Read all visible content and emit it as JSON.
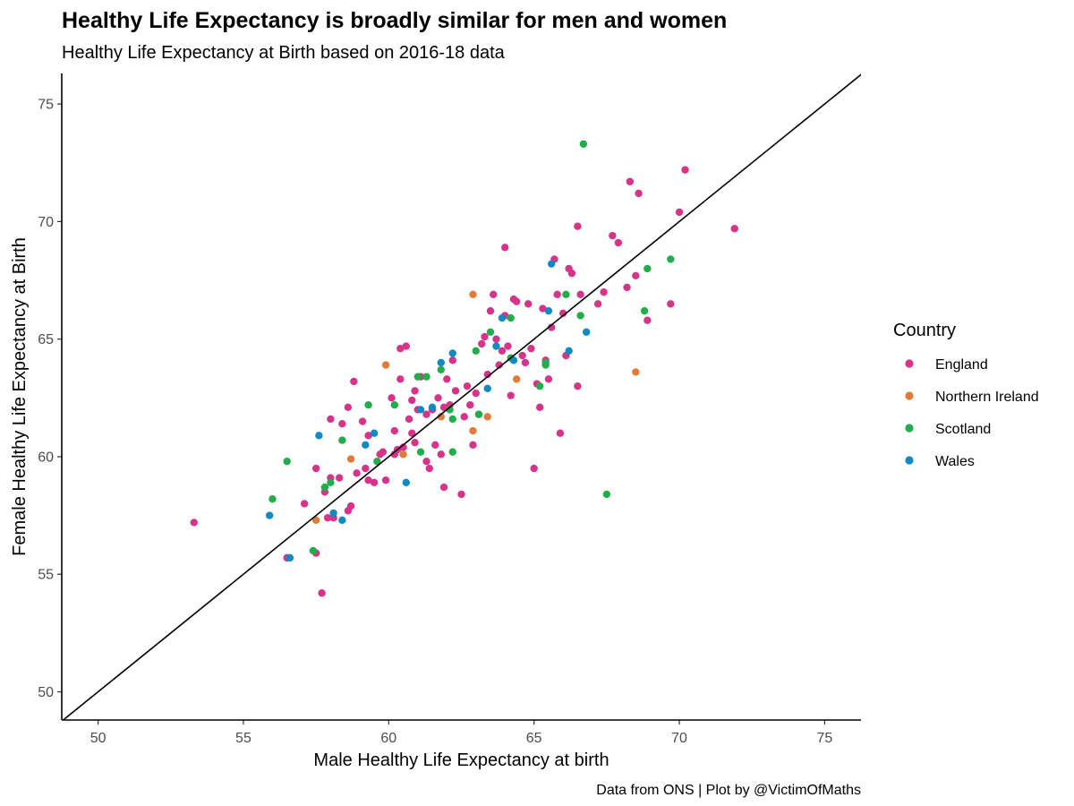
{
  "chart_data": {
    "type": "scatter",
    "title": "Healthy Life Expectancy is broadly similar for men and women",
    "subtitle": "Healthy Life Expectancy at Birth based on 2016-18 data",
    "xlabel": "Male Healthy Life Expectancy at birth",
    "ylabel": "Female Healthy Life Expectancy at Birth",
    "caption": "Data from ONS | Plot by @VictimOfMaths",
    "xlim": [
      48.75,
      76.25
    ],
    "ylim": [
      48.8,
      76.3
    ],
    "xticks": [
      50,
      55,
      60,
      65,
      70,
      75
    ],
    "yticks": [
      50,
      55,
      60,
      65,
      70,
      75
    ],
    "grid": false,
    "reference_line": "y = x",
    "legend": {
      "title": "Country",
      "placement": "right",
      "entries": [
        "England",
        "Northern Ireland",
        "Scotland",
        "Wales"
      ]
    },
    "colors": {
      "England": "#d6338a",
      "Northern Ireland": "#e07b39",
      "Scotland": "#1fae4a",
      "Wales": "#1189c4"
    },
    "series": [
      {
        "name": "England",
        "points": [
          [
            53.3,
            57.2
          ],
          [
            56.5,
            55.7
          ],
          [
            57.1,
            58.0
          ],
          [
            57.5,
            59.5
          ],
          [
            57.5,
            55.9
          ],
          [
            57.8,
            58.5
          ],
          [
            57.7,
            54.2
          ],
          [
            57.9,
            57.4
          ],
          [
            58.0,
            61.6
          ],
          [
            58.0,
            59.1
          ],
          [
            58.1,
            57.4
          ],
          [
            58.3,
            59.1
          ],
          [
            58.4,
            61.4
          ],
          [
            58.6,
            57.7
          ],
          [
            58.7,
            57.9
          ],
          [
            58.6,
            62.1
          ],
          [
            58.8,
            63.2
          ],
          [
            58.9,
            59.3
          ],
          [
            59.1,
            61.5
          ],
          [
            59.2,
            59.5
          ],
          [
            59.3,
            59.0
          ],
          [
            59.3,
            60.9
          ],
          [
            59.5,
            58.9
          ],
          [
            59.7,
            60.1
          ],
          [
            59.8,
            60.2
          ],
          [
            59.9,
            59.0
          ],
          [
            60.1,
            62.5
          ],
          [
            60.2,
            60.1
          ],
          [
            60.3,
            60.3
          ],
          [
            60.2,
            61.1
          ],
          [
            60.4,
            63.3
          ],
          [
            60.4,
            64.6
          ],
          [
            60.5,
            60.4
          ],
          [
            60.6,
            64.7
          ],
          [
            60.7,
            61.6
          ],
          [
            60.8,
            62.4
          ],
          [
            60.8,
            61.0
          ],
          [
            60.9,
            62.8
          ],
          [
            60.9,
            60.6
          ],
          [
            61.0,
            62.0
          ],
          [
            61.1,
            63.4
          ],
          [
            61.3,
            61.8
          ],
          [
            61.3,
            59.8
          ],
          [
            61.4,
            59.5
          ],
          [
            61.5,
            62.0
          ],
          [
            61.6,
            60.5
          ],
          [
            61.7,
            62.5
          ],
          [
            61.8,
            60.1
          ],
          [
            61.9,
            62.1
          ],
          [
            61.9,
            58.7
          ],
          [
            62.0,
            63.3
          ],
          [
            62.1,
            62.2
          ],
          [
            62.2,
            64.1
          ],
          [
            62.3,
            62.8
          ],
          [
            62.5,
            58.4
          ],
          [
            62.6,
            61.7
          ],
          [
            62.7,
            63.0
          ],
          [
            62.8,
            62.2
          ],
          [
            62.9,
            60.5
          ],
          [
            63.0,
            62.7
          ],
          [
            63.1,
            61.8
          ],
          [
            63.2,
            64.8
          ],
          [
            63.3,
            65.1
          ],
          [
            63.4,
            63.5
          ],
          [
            63.5,
            66.2
          ],
          [
            63.6,
            66.9
          ],
          [
            63.7,
            65.0
          ],
          [
            63.8,
            63.9
          ],
          [
            63.9,
            64.5
          ],
          [
            64.0,
            68.9
          ],
          [
            64.0,
            66.0
          ],
          [
            64.1,
            64.7
          ],
          [
            64.2,
            62.6
          ],
          [
            64.3,
            66.7
          ],
          [
            64.4,
            66.6
          ],
          [
            64.6,
            64.3
          ],
          [
            64.7,
            64.0
          ],
          [
            64.8,
            66.5
          ],
          [
            64.9,
            64.6
          ],
          [
            65.0,
            59.5
          ],
          [
            65.1,
            63.1
          ],
          [
            65.2,
            62.1
          ],
          [
            65.3,
            66.3
          ],
          [
            65.4,
            64.1
          ],
          [
            65.5,
            63.3
          ],
          [
            65.6,
            65.5
          ],
          [
            65.7,
            68.4
          ],
          [
            65.8,
            66.9
          ],
          [
            65.9,
            61.0
          ],
          [
            66.0,
            66.1
          ],
          [
            66.1,
            64.3
          ],
          [
            66.2,
            68.0
          ],
          [
            66.3,
            67.8
          ],
          [
            66.5,
            69.8
          ],
          [
            66.5,
            63.0
          ],
          [
            66.6,
            66.9
          ],
          [
            67.2,
            66.5
          ],
          [
            67.4,
            67.0
          ],
          [
            67.7,
            69.4
          ],
          [
            67.9,
            69.1
          ],
          [
            68.2,
            67.2
          ],
          [
            68.3,
            71.7
          ],
          [
            68.6,
            71.2
          ],
          [
            68.5,
            67.7
          ],
          [
            68.9,
            65.8
          ],
          [
            69.7,
            66.5
          ],
          [
            70.0,
            70.4
          ],
          [
            70.2,
            72.2
          ],
          [
            71.9,
            69.7
          ]
        ]
      },
      {
        "name": "Northern Ireland",
        "points": [
          [
            57.5,
            57.3
          ],
          [
            58.7,
            59.9
          ],
          [
            59.9,
            63.9
          ],
          [
            60.5,
            60.1
          ],
          [
            61.8,
            61.7
          ],
          [
            62.9,
            61.1
          ],
          [
            62.9,
            66.9
          ],
          [
            63.4,
            61.7
          ],
          [
            64.4,
            63.3
          ],
          [
            68.5,
            63.6
          ]
        ]
      },
      {
        "name": "Scotland",
        "points": [
          [
            56.0,
            58.2
          ],
          [
            56.5,
            59.8
          ],
          [
            57.4,
            56.0
          ],
          [
            57.8,
            58.7
          ],
          [
            58.0,
            58.9
          ],
          [
            58.4,
            60.7
          ],
          [
            59.3,
            62.2
          ],
          [
            59.6,
            59.8
          ],
          [
            60.2,
            62.2
          ],
          [
            61.0,
            63.4
          ],
          [
            61.1,
            60.2
          ],
          [
            61.3,
            63.4
          ],
          [
            61.8,
            63.7
          ],
          [
            62.2,
            61.6
          ],
          [
            62.1,
            62.0
          ],
          [
            62.2,
            60.2
          ],
          [
            63.0,
            64.5
          ],
          [
            63.1,
            61.8
          ],
          [
            63.5,
            65.3
          ],
          [
            64.2,
            65.9
          ],
          [
            64.2,
            64.2
          ],
          [
            65.2,
            63.0
          ],
          [
            65.4,
            64.0
          ],
          [
            65.4,
            63.9
          ],
          [
            66.1,
            66.9
          ],
          [
            66.6,
            66.0
          ],
          [
            66.7,
            73.3
          ],
          [
            67.5,
            58.4
          ],
          [
            68.8,
            66.2
          ],
          [
            68.9,
            68.0
          ],
          [
            69.7,
            68.4
          ]
        ]
      },
      {
        "name": "Wales",
        "points": [
          [
            55.9,
            57.5
          ],
          [
            56.6,
            55.7
          ],
          [
            57.6,
            60.9
          ],
          [
            58.1,
            57.6
          ],
          [
            58.4,
            57.3
          ],
          [
            59.2,
            60.5
          ],
          [
            59.5,
            61.0
          ],
          [
            60.6,
            58.9
          ],
          [
            61.1,
            62.0
          ],
          [
            61.5,
            62.1
          ],
          [
            61.8,
            64.0
          ],
          [
            62.2,
            64.4
          ],
          [
            63.4,
            62.9
          ],
          [
            63.7,
            64.7
          ],
          [
            63.9,
            65.9
          ],
          [
            64.3,
            64.1
          ],
          [
            65.5,
            66.2
          ],
          [
            65.6,
            68.2
          ],
          [
            66.2,
            64.5
          ],
          [
            66.8,
            65.3
          ]
        ]
      }
    ]
  }
}
